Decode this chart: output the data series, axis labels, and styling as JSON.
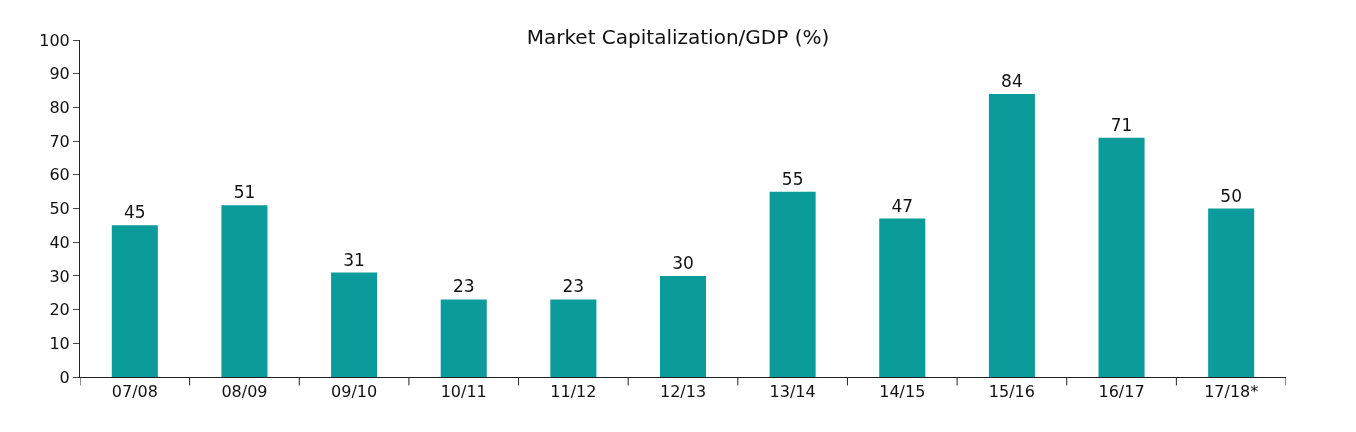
{
  "chart_data": {
    "type": "bar",
    "title": "Market Capitalization/GDP (%)",
    "categories": [
      "07/08",
      "08/09",
      "09/10",
      "10/11",
      "11/12",
      "12/13",
      "13/14",
      "14/15",
      "15/16",
      "16/17",
      "17/18*"
    ],
    "values": [
      45,
      51,
      31,
      23,
      23,
      30,
      55,
      47,
      84,
      71,
      50
    ],
    "color": "#0a9b9a",
    "ylim": [
      0,
      100
    ],
    "yticks": [
      0,
      10,
      20,
      30,
      40,
      50,
      60,
      70,
      80,
      90,
      100
    ],
    "data_labels": true
  }
}
